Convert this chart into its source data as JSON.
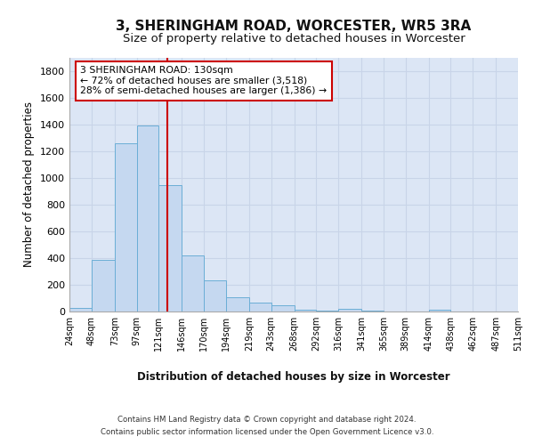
{
  "title": "3, SHERINGHAM ROAD, WORCESTER, WR5 3RA",
  "subtitle": "Size of property relative to detached houses in Worcester",
  "xlabel": "Distribution of detached houses by size in Worcester",
  "ylabel": "Number of detached properties",
  "footer_line1": "Contains HM Land Registry data © Crown copyright and database right 2024.",
  "footer_line2": "Contains public sector information licensed under the Open Government Licence v3.0.",
  "annotation_line1": "3 SHERINGHAM ROAD: 130sqm",
  "annotation_line2": "← 72% of detached houses are smaller (3,518)",
  "annotation_line3": "28% of semi-detached houses are larger (1,386) →",
  "bin_edges": [
    24,
    48,
    73,
    97,
    121,
    146,
    170,
    194,
    219,
    243,
    268,
    292,
    316,
    341,
    365,
    389,
    414,
    438,
    462,
    487,
    511
  ],
  "bar_heights": [
    25,
    385,
    1260,
    1395,
    950,
    420,
    235,
    110,
    65,
    50,
    15,
    5,
    20,
    5,
    0,
    0,
    15,
    0,
    0,
    0
  ],
  "bar_color": "#c5d8f0",
  "bar_edge_color": "#6baed6",
  "vline_color": "#cc0000",
  "vline_x": 130,
  "ylim": [
    0,
    1900
  ],
  "yticks": [
    0,
    200,
    400,
    600,
    800,
    1000,
    1200,
    1400,
    1600,
    1800
  ],
  "grid_color": "#c8d4e8",
  "bg_color": "#dce6f5",
  "annotation_box_color": "#cc0000",
  "title_fontsize": 11,
  "subtitle_fontsize": 9.5
}
